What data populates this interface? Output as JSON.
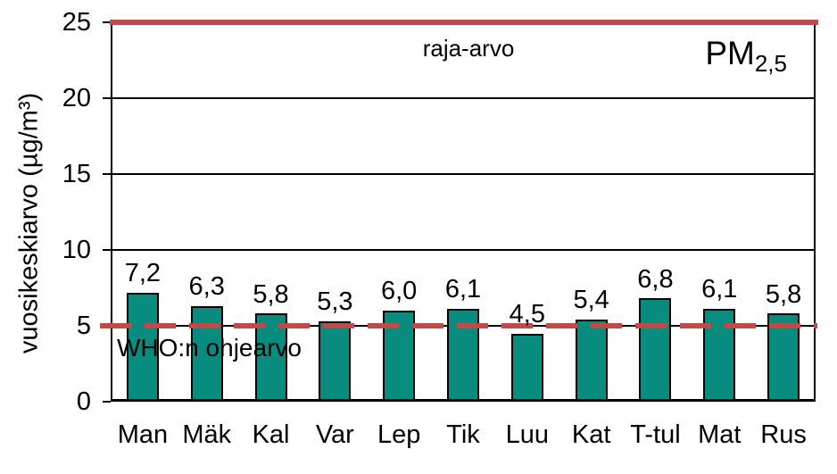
{
  "chart_data": {
    "type": "bar",
    "title_main": "PM",
    "title_sub": "2,5",
    "ylabel": "vuosikeskiarvo (µg/m³)",
    "xlabel": "",
    "categories": [
      "Man",
      "Mäk",
      "Kal",
      "Var",
      "Lep",
      "Tik",
      "Luu",
      "Kat",
      "T-tul",
      "Mat",
      "Rus"
    ],
    "values": [
      7.2,
      6.3,
      5.8,
      5.3,
      6.0,
      6.1,
      4.5,
      5.4,
      6.8,
      6.1,
      5.8
    ],
    "value_labels": [
      "7,2",
      "6,3",
      "5,8",
      "5,3",
      "6,0",
      "6,1",
      "4,5",
      "5,4",
      "6,8",
      "6,1",
      "5,8"
    ],
    "ylim": [
      0,
      25
    ],
    "yticks": [
      0,
      5,
      10,
      15,
      20,
      25
    ],
    "ytick_labels": [
      "0",
      "5",
      "10",
      "15",
      "20",
      "25"
    ],
    "grid": "horizontal",
    "legend_position": "none",
    "colors": {
      "bar_fill": "#098C80",
      "bar_border": "#000000",
      "reference_line": "#BE4B48",
      "text": "#000000",
      "background": "#FFFFFF"
    },
    "reference_lines": [
      {
        "value": 25,
        "style": "solid",
        "label": "raja-arvo"
      },
      {
        "value": 5,
        "style": "dashed",
        "label": "WHO:n ohjearvo"
      }
    ]
  }
}
